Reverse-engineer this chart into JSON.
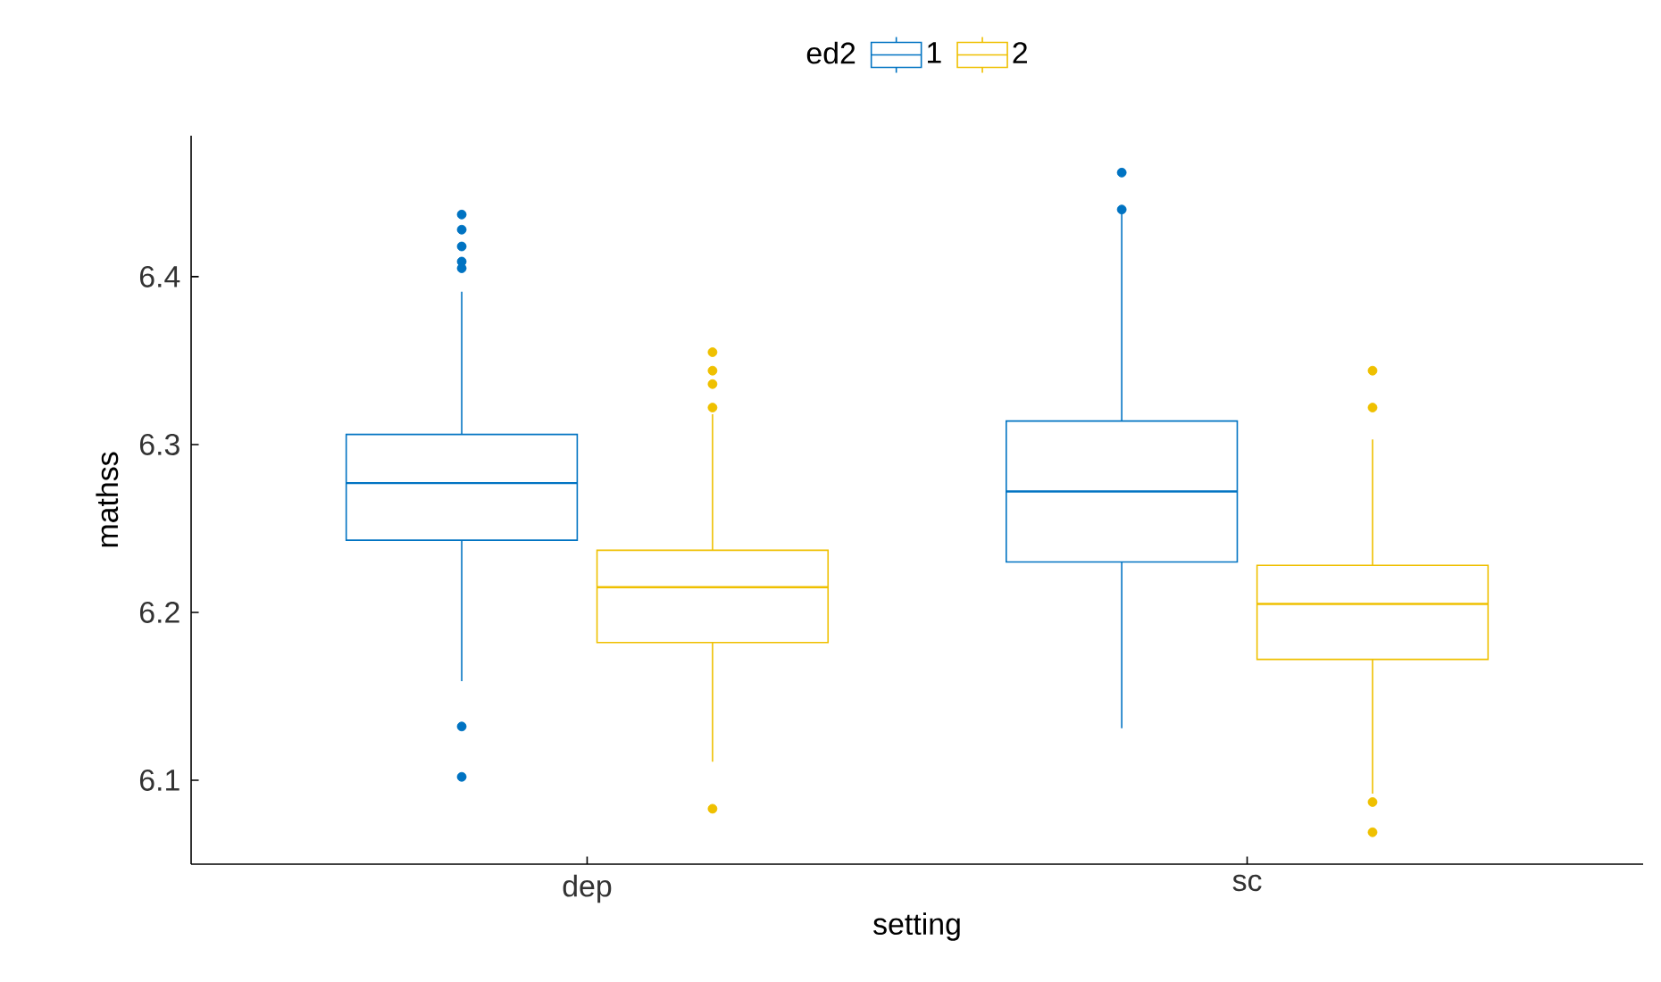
{
  "chart_data": {
    "type": "box",
    "xlabel": "setting",
    "ylabel": "mathss",
    "legend_title": "ed2",
    "legend": "top",
    "categories": [
      "dep",
      "sc"
    ],
    "ylim": [
      6.05,
      6.484
    ],
    "yticks": [
      6.1,
      6.2,
      6.3,
      6.4
    ],
    "series": [
      {
        "name": "1",
        "color": "#0073c2",
        "boxes": [
          {
            "low": 6.159,
            "q1": 6.243,
            "median": 6.277,
            "q3": 6.306,
            "high": 6.391,
            "outliers": [
              6.437,
              6.428,
              6.418,
              6.409,
              6.405,
              6.132,
              6.102
            ]
          },
          {
            "low": 6.131,
            "q1": 6.23,
            "median": 6.272,
            "q3": 6.314,
            "high": 6.438,
            "outliers": [
              6.462,
              6.44
            ]
          }
        ]
      },
      {
        "name": "2",
        "color": "#efc000",
        "boxes": [
          {
            "low": 6.111,
            "q1": 6.182,
            "median": 6.215,
            "q3": 6.237,
            "high": 6.318,
            "outliers": [
              6.355,
              6.344,
              6.336,
              6.322,
              6.083
            ]
          },
          {
            "low": 6.092,
            "q1": 6.172,
            "median": 6.205,
            "q3": 6.228,
            "high": 6.303,
            "outliers": [
              6.344,
              6.322,
              6.087,
              6.069
            ]
          }
        ]
      }
    ]
  }
}
